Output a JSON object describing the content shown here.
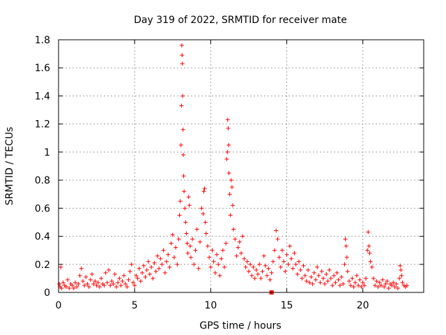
{
  "chart_data": {
    "type": "scatter",
    "title": "Day 319 of 2022, SRMTID for receiver mate",
    "xlabel": "GPS time / hours",
    "ylabel": "SRMTID / TECUs",
    "xlim": [
      0,
      24
    ],
    "ylim": [
      0,
      1.8
    ],
    "x_ticks": [
      0,
      5,
      10,
      15,
      20
    ],
    "x_tick_labels": [
      "0",
      "5",
      "10",
      "15",
      "20"
    ],
    "y_ticks": [
      0,
      0.2,
      0.4,
      0.6,
      0.8,
      1,
      1.2,
      1.4,
      1.6,
      1.8
    ],
    "y_tick_labels": [
      "0",
      "0.2",
      "0.4",
      "0.6",
      "0.8",
      "1",
      "1.2",
      "1.4",
      "1.6",
      "1.8"
    ],
    "grid": true,
    "marker": "+",
    "marker_color": "#ff0000",
    "extra_marker": {
      "shape": "square",
      "x": 14.0,
      "y": 0.0,
      "color": "#ff0000"
    },
    "series": [
      {
        "name": "SRMTID",
        "points": [
          [
            0.05,
            0.06
          ],
          [
            0.1,
            0.04
          ],
          [
            0.15,
            0.18
          ],
          [
            0.2,
            0.03
          ],
          [
            0.3,
            0.07
          ],
          [
            0.4,
            0.05
          ],
          [
            0.5,
            0.04
          ],
          [
            0.6,
            0.09
          ],
          [
            0.7,
            0.03
          ],
          [
            0.8,
            0.06
          ],
          [
            0.9,
            0.05
          ],
          [
            1.0,
            0.03
          ],
          [
            1.1,
            0.07
          ],
          [
            1.2,
            0.04
          ],
          [
            1.3,
            0.06
          ],
          [
            1.4,
            0.12
          ],
          [
            1.5,
            0.17
          ],
          [
            1.6,
            0.08
          ],
          [
            1.7,
            0.05
          ],
          [
            1.8,
            0.11
          ],
          [
            1.9,
            0.06
          ],
          [
            2.0,
            0.04
          ],
          [
            2.1,
            0.09
          ],
          [
            2.2,
            0.13
          ],
          [
            2.3,
            0.06
          ],
          [
            2.4,
            0.08
          ],
          [
            2.5,
            0.05
          ],
          [
            2.6,
            0.07
          ],
          [
            2.7,
            0.04
          ],
          [
            2.8,
            0.1
          ],
          [
            2.9,
            0.06
          ],
          [
            3.0,
            0.05
          ],
          [
            3.1,
            0.14
          ],
          [
            3.2,
            0.07
          ],
          [
            3.3,
            0.16
          ],
          [
            3.4,
            0.05
          ],
          [
            3.5,
            0.08
          ],
          [
            3.6,
            0.06
          ],
          [
            3.7,
            0.13
          ],
          [
            3.8,
            0.04
          ],
          [
            3.9,
            0.07
          ],
          [
            4.0,
            0.1
          ],
          [
            4.1,
            0.05
          ],
          [
            4.2,
            0.08
          ],
          [
            4.3,
            0.12
          ],
          [
            4.4,
            0.06
          ],
          [
            4.5,
            0.04
          ],
          [
            4.6,
            0.09
          ],
          [
            4.7,
            0.15
          ],
          [
            4.8,
            0.2
          ],
          [
            4.9,
            0.07
          ],
          [
            5.0,
            0.05
          ],
          [
            5.1,
            0.12
          ],
          [
            5.2,
            0.1
          ],
          [
            5.3,
            0.17
          ],
          [
            5.4,
            0.08
          ],
          [
            5.5,
            0.14
          ],
          [
            5.6,
            0.19
          ],
          [
            5.7,
            0.11
          ],
          [
            5.8,
            0.16
          ],
          [
            5.9,
            0.22
          ],
          [
            6.0,
            0.13
          ],
          [
            6.1,
            0.18
          ],
          [
            6.2,
            0.1
          ],
          [
            6.3,
            0.21
          ],
          [
            6.4,
            0.15
          ],
          [
            6.5,
            0.26
          ],
          [
            6.6,
            0.17
          ],
          [
            6.7,
            0.24
          ],
          [
            6.8,
            0.2
          ],
          [
            6.9,
            0.3
          ],
          [
            7.0,
            0.14
          ],
          [
            7.1,
            0.22
          ],
          [
            7.2,
            0.27
          ],
          [
            7.3,
            0.18
          ],
          [
            7.4,
            0.35
          ],
          [
            7.5,
            0.41
          ],
          [
            7.6,
            0.25
          ],
          [
            7.7,
            0.32
          ],
          [
            7.8,
            0.2
          ],
          [
            7.9,
            0.38
          ],
          [
            7.95,
            0.55
          ],
          [
            8.0,
            0.65
          ],
          [
            8.05,
            1.05
          ],
          [
            8.08,
            1.33
          ],
          [
            8.1,
            1.76
          ],
          [
            8.12,
            1.69
          ],
          [
            8.14,
            1.63
          ],
          [
            8.16,
            1.4
          ],
          [
            8.18,
            1.16
          ],
          [
            8.2,
            0.98
          ],
          [
            8.22,
            0.83
          ],
          [
            8.25,
            0.72
          ],
          [
            8.3,
            0.6
          ],
          [
            8.35,
            0.5
          ],
          [
            8.4,
            0.42
          ],
          [
            8.45,
            0.35
          ],
          [
            8.5,
            0.28
          ],
          [
            8.55,
            0.68
          ],
          [
            8.6,
            0.62
          ],
          [
            8.65,
            0.33
          ],
          [
            8.7,
            0.25
          ],
          [
            8.8,
            0.38
          ],
          [
            8.9,
            0.2
          ],
          [
            9.0,
            0.3
          ],
          [
            9.1,
            0.45
          ],
          [
            9.2,
            0.17
          ],
          [
            9.3,
            0.36
          ],
          [
            9.4,
            0.6
          ],
          [
            9.5,
            0.56
          ],
          [
            9.55,
            0.72
          ],
          [
            9.6,
            0.74
          ],
          [
            9.65,
            0.5
          ],
          [
            9.7,
            0.42
          ],
          [
            9.8,
            0.33
          ],
          [
            9.9,
            0.25
          ],
          [
            10.0,
            0.18
          ],
          [
            10.1,
            0.3
          ],
          [
            10.2,
            0.22
          ],
          [
            10.3,
            0.14
          ],
          [
            10.4,
            0.27
          ],
          [
            10.5,
            0.2
          ],
          [
            10.6,
            0.12
          ],
          [
            10.7,
            0.24
          ],
          [
            10.8,
            0.3
          ],
          [
            10.9,
            0.18
          ],
          [
            11.0,
            0.35
          ],
          [
            11.05,
            0.95
          ],
          [
            11.1,
            1.0
          ],
          [
            11.12,
            1.23
          ],
          [
            11.15,
            1.17
          ],
          [
            11.18,
            1.05
          ],
          [
            11.2,
            0.85
          ],
          [
            11.25,
            0.7
          ],
          [
            11.3,
            0.55
          ],
          [
            11.35,
            0.8
          ],
          [
            11.4,
            0.75
          ],
          [
            11.45,
            0.62
          ],
          [
            11.5,
            0.45
          ],
          [
            11.6,
            0.38
          ],
          [
            11.7,
            0.26
          ],
          [
            11.8,
            0.32
          ],
          [
            11.9,
            0.36
          ],
          [
            12.0,
            0.28
          ],
          [
            12.1,
            0.4
          ],
          [
            12.2,
            0.24
          ],
          [
            12.3,
            0.18
          ],
          [
            12.4,
            0.22
          ],
          [
            12.5,
            0.15
          ],
          [
            12.6,
            0.2
          ],
          [
            12.7,
            0.12
          ],
          [
            12.8,
            0.18
          ],
          [
            12.9,
            0.1
          ],
          [
            13.0,
            0.16
          ],
          [
            13.1,
            0.13
          ],
          [
            13.2,
            0.2
          ],
          [
            13.3,
            0.1
          ],
          [
            13.4,
            0.15
          ],
          [
            13.5,
            0.26
          ],
          [
            13.6,
            0.19
          ],
          [
            13.7,
            0.12
          ],
          [
            13.8,
            0.17
          ],
          [
            13.9,
            0.09
          ],
          [
            14.0,
            0.14
          ],
          [
            14.1,
            0.22
          ],
          [
            14.2,
            0.3
          ],
          [
            14.3,
            0.44
          ],
          [
            14.4,
            0.38
          ],
          [
            14.5,
            0.25
          ],
          [
            14.6,
            0.18
          ],
          [
            14.7,
            0.3
          ],
          [
            14.8,
            0.22
          ],
          [
            14.9,
            0.15
          ],
          [
            15.0,
            0.27
          ],
          [
            15.1,
            0.2
          ],
          [
            15.2,
            0.33
          ],
          [
            15.3,
            0.24
          ],
          [
            15.4,
            0.17
          ],
          [
            15.5,
            0.28
          ],
          [
            15.6,
            0.2
          ],
          [
            15.7,
            0.13
          ],
          [
            15.8,
            0.22
          ],
          [
            15.9,
            0.16
          ],
          [
            16.0,
            0.1
          ],
          [
            16.1,
            0.19
          ],
          [
            16.2,
            0.12
          ],
          [
            16.3,
            0.08
          ],
          [
            16.4,
            0.16
          ],
          [
            16.5,
            0.07
          ],
          [
            16.6,
            0.11
          ],
          [
            16.7,
            0.06
          ],
          [
            16.8,
            0.14
          ],
          [
            16.9,
            0.09
          ],
          [
            17.0,
            0.18
          ],
          [
            17.1,
            0.12
          ],
          [
            17.2,
            0.07
          ],
          [
            17.3,
            0.15
          ],
          [
            17.4,
            0.1
          ],
          [
            17.5,
            0.06
          ],
          [
            17.6,
            0.13
          ],
          [
            17.7,
            0.08
          ],
          [
            17.8,
            0.16
          ],
          [
            17.9,
            0.1
          ],
          [
            18.0,
            0.05
          ],
          [
            18.1,
            0.12
          ],
          [
            18.2,
            0.07
          ],
          [
            18.3,
            0.14
          ],
          [
            18.4,
            0.09
          ],
          [
            18.5,
            0.05
          ],
          [
            18.6,
            0.11
          ],
          [
            18.7,
            0.06
          ],
          [
            18.8,
            0.2
          ],
          [
            18.85,
            0.38
          ],
          [
            18.9,
            0.33
          ],
          [
            18.95,
            0.25
          ],
          [
            19.0,
            0.15
          ],
          [
            19.1,
            0.08
          ],
          [
            19.2,
            0.05
          ],
          [
            19.3,
            0.1
          ],
          [
            19.4,
            0.04
          ],
          [
            19.5,
            0.07
          ],
          [
            19.6,
            0.12
          ],
          [
            19.7,
            0.05
          ],
          [
            19.8,
            0.09
          ],
          [
            19.9,
            0.04
          ],
          [
            20.0,
            0.07
          ],
          [
            20.1,
            0.05
          ],
          [
            20.2,
            0.1
          ],
          [
            20.3,
            0.3
          ],
          [
            20.35,
            0.43
          ],
          [
            20.4,
            0.33
          ],
          [
            20.45,
            0.28
          ],
          [
            20.5,
            0.22
          ],
          [
            20.6,
            0.18
          ],
          [
            20.7,
            0.1
          ],
          [
            20.8,
            0.05
          ],
          [
            20.9,
            0.08
          ],
          [
            21.0,
            0.04
          ],
          [
            21.1,
            0.07
          ],
          [
            21.2,
            0.05
          ],
          [
            21.3,
            0.09
          ],
          [
            21.4,
            0.04
          ],
          [
            21.5,
            0.06
          ],
          [
            21.6,
            0.08
          ],
          [
            21.7,
            0.03
          ],
          [
            21.8,
            0.06
          ],
          [
            21.9,
            0.05
          ],
          [
            22.0,
            0.07
          ],
          [
            22.1,
            0.04
          ],
          [
            22.2,
            0.06
          ],
          [
            22.3,
            0.03
          ],
          [
            22.4,
            0.1
          ],
          [
            22.45,
            0.19
          ],
          [
            22.5,
            0.16
          ],
          [
            22.55,
            0.12
          ],
          [
            22.6,
            0.07
          ],
          [
            22.7,
            0.05
          ],
          [
            22.8,
            0.04
          ],
          [
            22.9,
            0.05
          ]
        ]
      }
    ]
  }
}
